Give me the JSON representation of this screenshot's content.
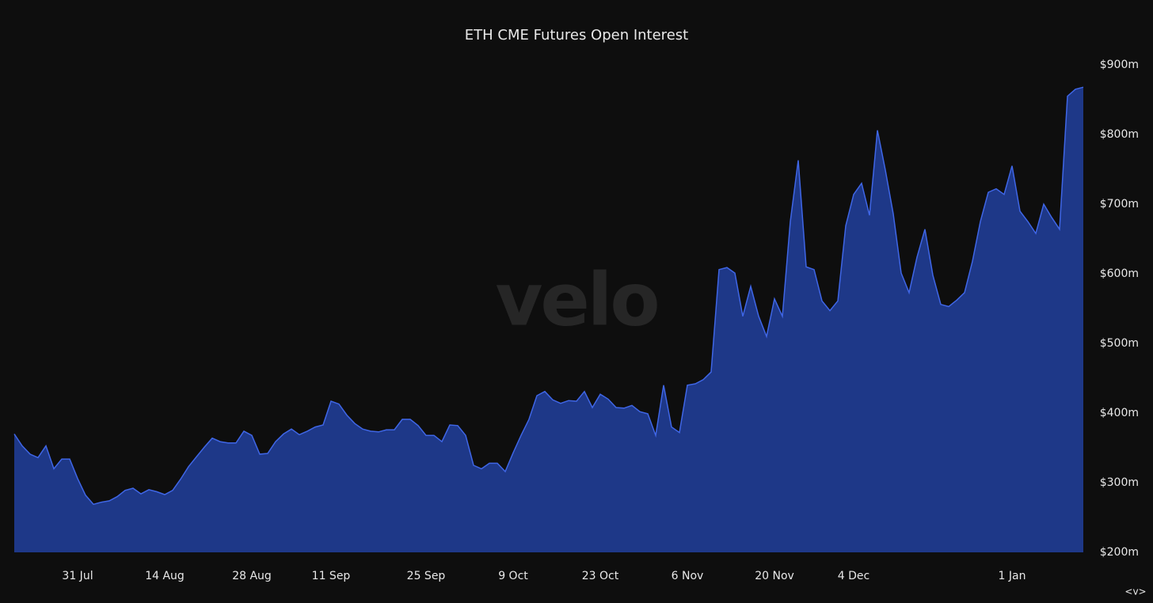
{
  "chart_data": {
    "type": "area",
    "title": "ETH CME Futures Open Interest",
    "watermark": "velo",
    "nav": "<v>",
    "color": "#1e3888",
    "line_color": "#3f66e6",
    "categories": [
      null,
      null,
      null,
      null,
      null,
      null,
      null,
      null,
      "31 Jul",
      null,
      null,
      null,
      null,
      null,
      null,
      null,
      null,
      null,
      null,
      "14 Aug",
      null,
      null,
      null,
      null,
      null,
      null,
      null,
      null,
      null,
      null,
      "28 Aug",
      null,
      null,
      null,
      null,
      null,
      null,
      null,
      null,
      null,
      "11 Sep",
      null,
      null,
      null,
      null,
      null,
      null,
      null,
      null,
      null,
      null,
      null,
      "25 Sep",
      null,
      null,
      null,
      null,
      null,
      null,
      null,
      null,
      null,
      null,
      "9 Oct",
      null,
      null,
      null,
      null,
      null,
      null,
      null,
      null,
      null,
      null,
      "23 Oct",
      null,
      null,
      null,
      null,
      null,
      null,
      null,
      null,
      null,
      null,
      "6 Nov",
      null,
      null,
      null,
      null,
      null,
      null,
      null,
      null,
      null,
      null,
      "20 Nov",
      null,
      null,
      null,
      null,
      null,
      null,
      null,
      null,
      null,
      "4 Dec",
      null,
      null,
      null,
      null,
      null,
      null,
      null,
      null,
      null,
      null,
      null,
      null,
      null,
      null,
      null,
      null,
      null,
      null,
      null,
      "1 Jan",
      null,
      null,
      null,
      null,
      null,
      null,
      null,
      null,
      null
    ],
    "values": [
      370,
      353,
      341,
      336,
      353,
      320,
      334,
      334,
      306,
      282,
      269,
      272,
      274,
      280,
      289,
      292,
      284,
      290,
      287,
      283,
      289,
      305,
      323,
      337,
      351,
      364,
      359,
      357,
      357,
      374,
      368,
      341,
      342,
      359,
      370,
      377,
      369,
      374,
      380,
      383,
      417,
      413,
      397,
      385,
      377,
      374,
      373,
      376,
      376,
      391,
      391,
      382,
      368,
      368,
      359,
      383,
      382,
      368,
      325,
      320,
      328,
      328,
      316,
      343,
      368,
      391,
      425,
      431,
      419,
      414,
      418,
      417,
      431,
      408,
      427,
      420,
      408,
      407,
      411,
      402,
      399,
      368,
      440,
      380,
      372,
      440,
      442,
      448,
      459,
      606,
      609,
      601,
      539,
      582,
      539,
      510,
      564,
      539,
      675,
      763,
      610,
      606,
      561,
      547,
      561,
      669,
      714,
      730,
      684,
      806,
      749,
      686,
      601,
      573,
      624,
      664,
      598,
      556,
      553,
      562,
      573,
      618,
      675,
      717,
      722,
      714,
      755,
      690,
      675,
      658,
      700,
      681,
      664,
      855,
      865,
      868
    ],
    "ylim": [
      200,
      900
    ],
    "yticks": [
      {
        "value": 200,
        "label": "$200m"
      },
      {
        "value": 300,
        "label": "$300m"
      },
      {
        "value": 400,
        "label": "$400m"
      },
      {
        "value": 500,
        "label": "$500m"
      },
      {
        "value": 600,
        "label": "$600m"
      },
      {
        "value": 700,
        "label": "$700m"
      },
      {
        "value": 800,
        "label": "$800m"
      },
      {
        "value": 900,
        "label": "$900m"
      }
    ],
    "grid": false
  }
}
